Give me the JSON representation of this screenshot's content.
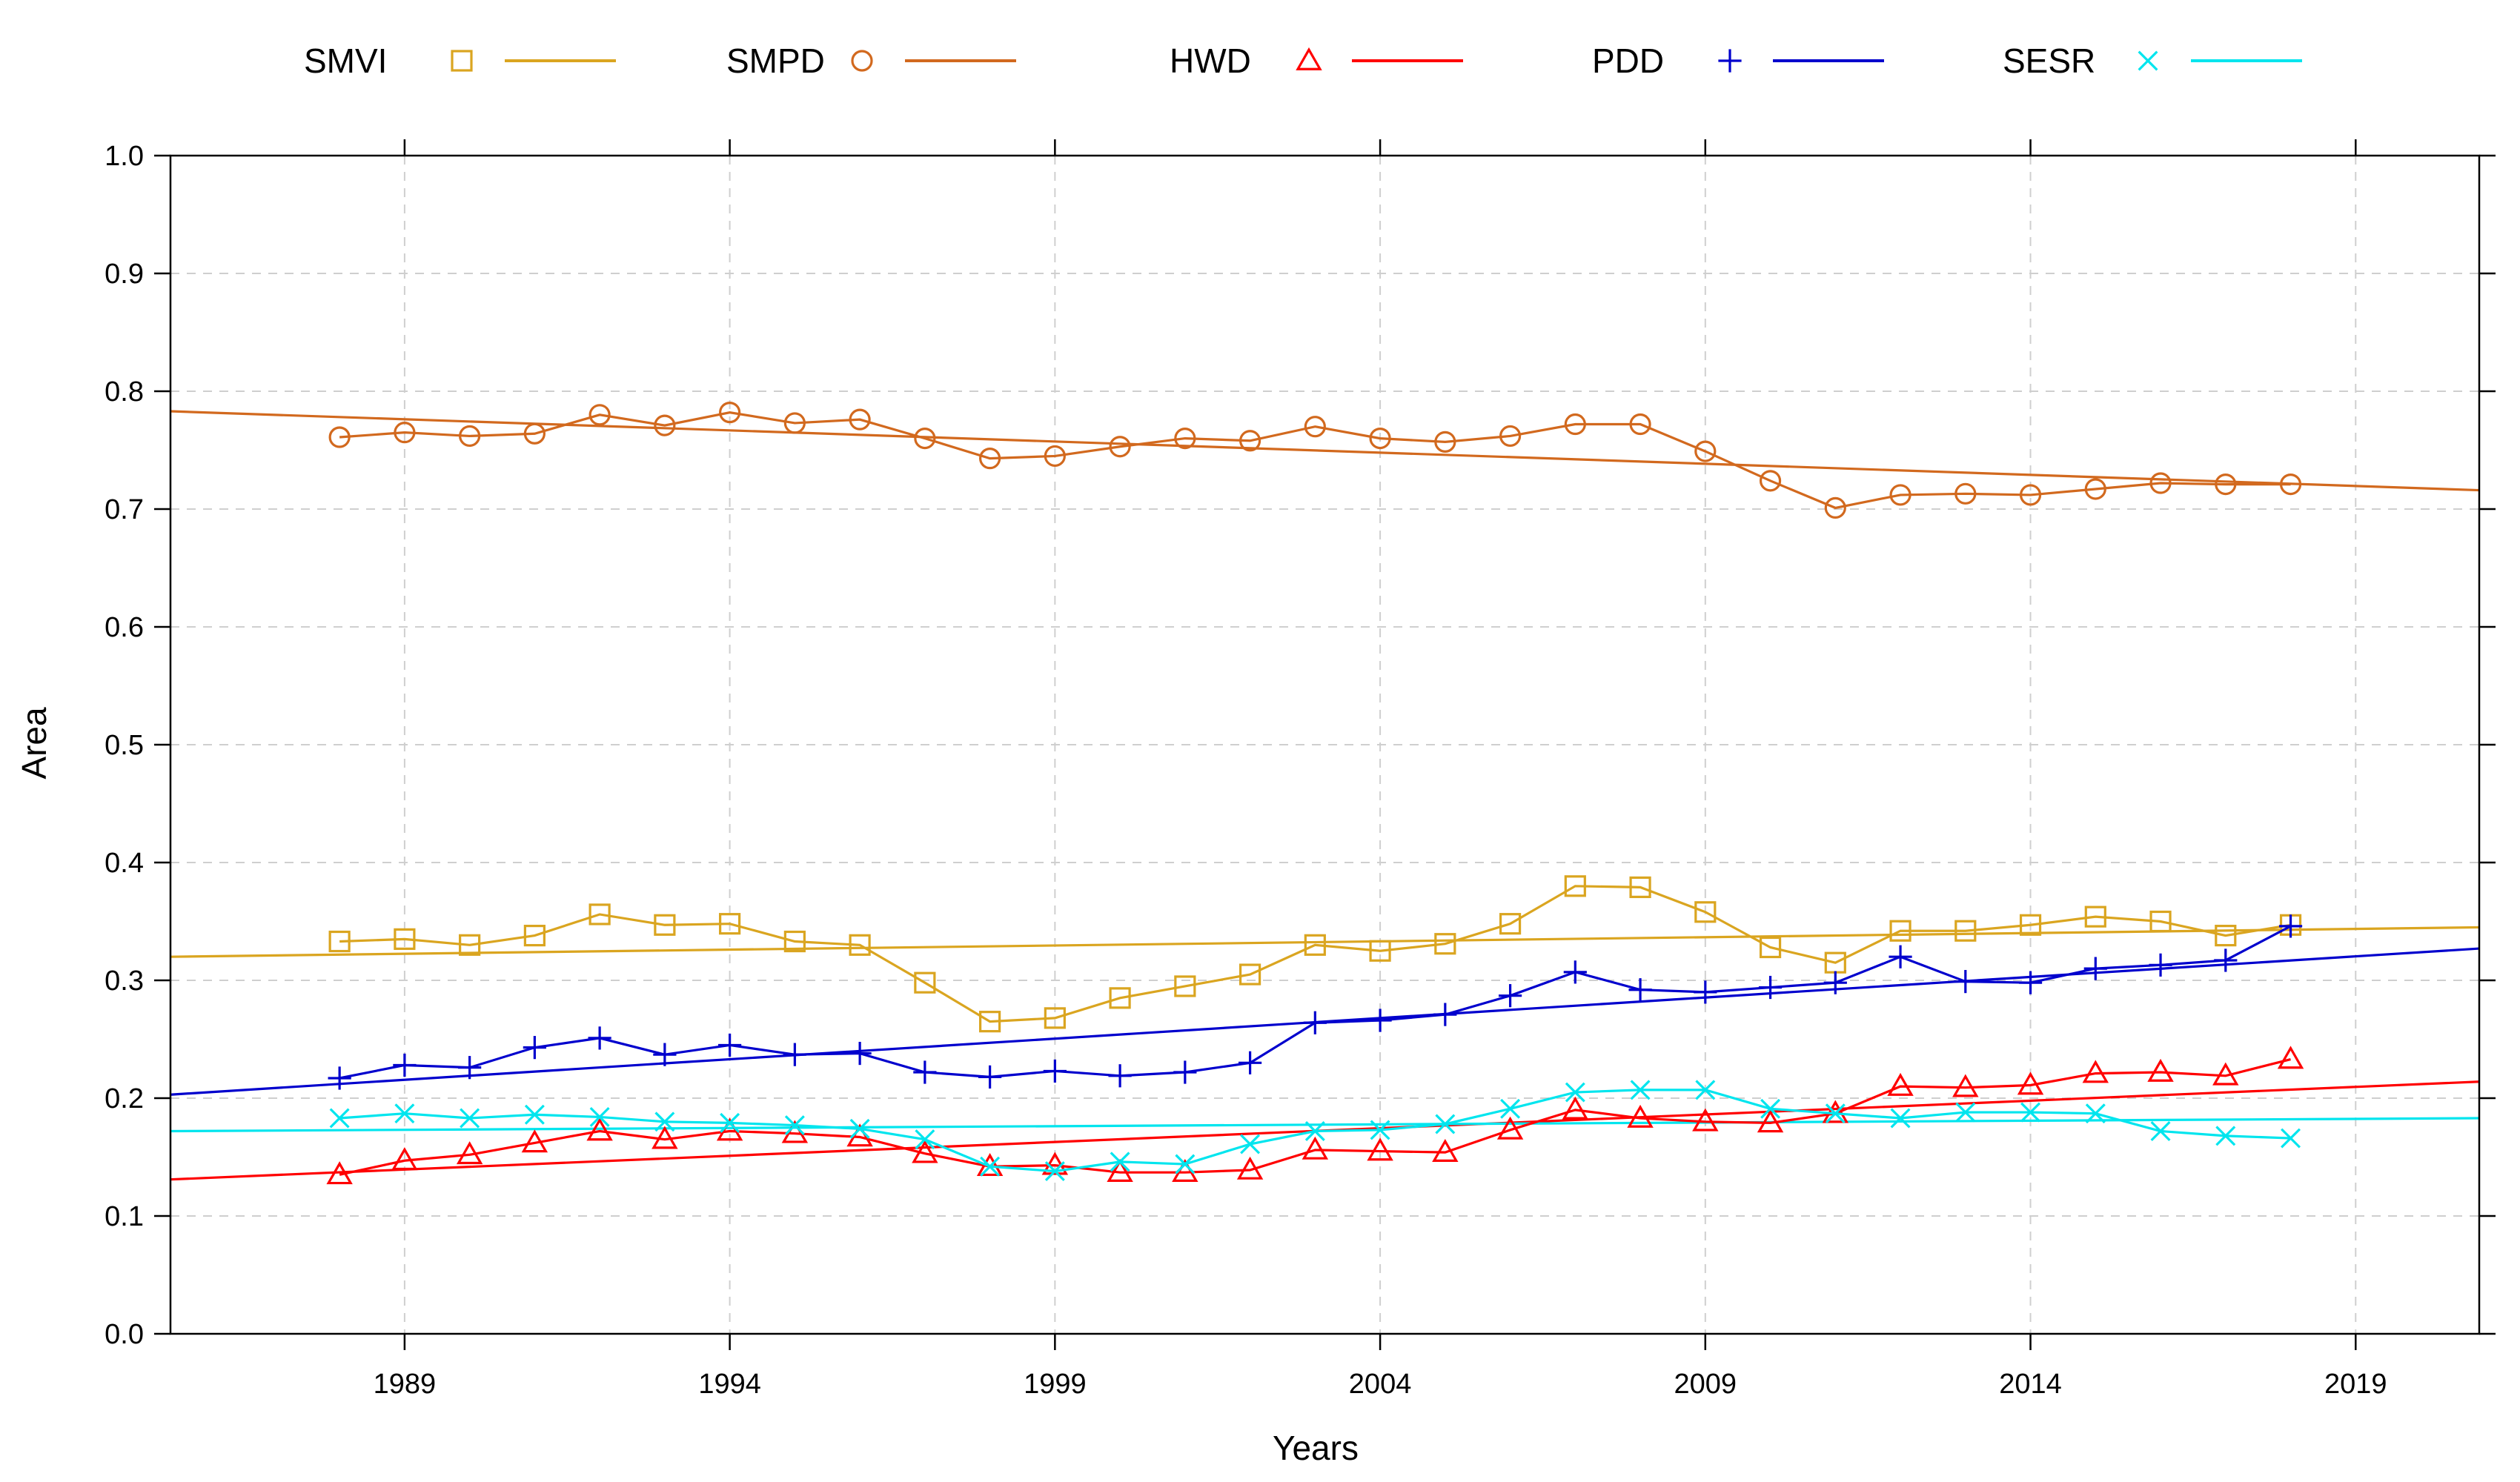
{
  "chart_data": {
    "type": "line",
    "xlabel": "Years",
    "ylabel": "Area",
    "xlim": [
      1985.4,
      2020.9
    ],
    "ylim": [
      0,
      1
    ],
    "x_ticks": [
      1989,
      1994,
      1999,
      2004,
      2009,
      2014,
      2019
    ],
    "y_ticks": [
      0.0,
      0.1,
      0.2,
      0.3,
      0.4,
      0.5,
      0.6,
      0.7,
      0.8,
      0.9,
      1.0
    ],
    "y_tick_labels": [
      "0.0",
      "0.1",
      "0.2",
      "0.3",
      "0.4",
      "0.5",
      "0.6",
      "0.7",
      "0.8",
      "0.9",
      "1.0"
    ],
    "grid": true,
    "legend_position": "top",
    "x": [
      1988,
      1989,
      1990,
      1991,
      1992,
      1993,
      1994,
      1995,
      1996,
      1997,
      1998,
      1999,
      2000,
      2001,
      2002,
      2003,
      2004,
      2005,
      2006,
      2007,
      2008,
      2009,
      2010,
      2011,
      2012,
      2013,
      2014,
      2015,
      2016,
      2017,
      2018
    ],
    "series": [
      {
        "name": "SMVI",
        "color": "#DAA520",
        "marker": "square",
        "values": [
          0.333,
          0.335,
          0.33,
          0.338,
          0.356,
          0.347,
          0.348,
          0.333,
          0.33,
          0.298,
          0.265,
          0.268,
          0.285,
          0.295,
          0.305,
          0.33,
          0.325,
          0.331,
          0.348,
          0.38,
          0.379,
          0.358,
          0.328,
          0.315,
          0.342,
          0.342,
          0.347,
          0.354,
          0.35,
          0.338,
          0.347
        ],
        "trend": [
          0.32,
          0.345
        ]
      },
      {
        "name": "SMPD",
        "color": "#D2691E",
        "marker": "circle",
        "values": [
          0.761,
          0.765,
          0.762,
          0.764,
          0.78,
          0.771,
          0.782,
          0.773,
          0.776,
          0.76,
          0.743,
          0.745,
          0.753,
          0.76,
          0.758,
          0.77,
          0.76,
          0.757,
          0.762,
          0.772,
          0.772,
          0.749,
          0.724,
          0.701,
          0.712,
          0.713,
          0.712,
          0.717,
          0.722,
          0.721,
          0.721
        ],
        "trend": [
          0.783,
          0.716
        ]
      },
      {
        "name": "HWD",
        "color": "#FF0000",
        "marker": "triangle",
        "values": [
          0.135,
          0.147,
          0.152,
          0.162,
          0.172,
          0.165,
          0.172,
          0.17,
          0.167,
          0.153,
          0.142,
          0.143,
          0.137,
          0.137,
          0.139,
          0.156,
          0.155,
          0.154,
          0.173,
          0.19,
          0.183,
          0.18,
          0.179,
          0.187,
          0.21,
          0.209,
          0.211,
          0.221,
          0.222,
          0.219,
          0.233
        ],
        "trend": [
          0.131,
          0.214
        ]
      },
      {
        "name": "PDD",
        "color": "#0000CD",
        "marker": "plus",
        "values": [
          0.217,
          0.228,
          0.226,
          0.243,
          0.251,
          0.237,
          0.245,
          0.237,
          0.238,
          0.222,
          0.218,
          0.223,
          0.219,
          0.222,
          0.23,
          0.264,
          0.266,
          0.271,
          0.287,
          0.307,
          0.292,
          0.29,
          0.294,
          0.298,
          0.32,
          0.299,
          0.298,
          0.31,
          0.313,
          0.317,
          0.346
        ],
        "trend": [
          0.203,
          0.327
        ]
      },
      {
        "name": "SESR",
        "color": "#00E5EE",
        "marker": "cross",
        "values": [
          0.183,
          0.187,
          0.183,
          0.186,
          0.184,
          0.18,
          0.179,
          0.177,
          0.174,
          0.165,
          0.142,
          0.138,
          0.146,
          0.144,
          0.161,
          0.172,
          0.173,
          0.178,
          0.191,
          0.205,
          0.207,
          0.207,
          0.191,
          0.187,
          0.183,
          0.188,
          0.188,
          0.187,
          0.172,
          0.168,
          0.166
        ],
        "trend": [
          0.172,
          0.183
        ]
      }
    ]
  }
}
